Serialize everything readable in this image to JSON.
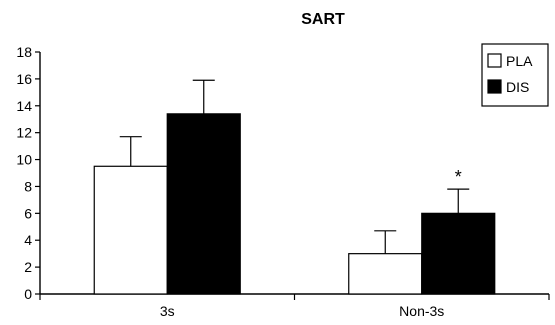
{
  "chart_data": {
    "type": "bar",
    "title": "SART",
    "xlabel": "",
    "ylabel": "",
    "ylim": [
      0,
      18
    ],
    "yticks": [
      0,
      2,
      4,
      6,
      8,
      10,
      12,
      14,
      16,
      18
    ],
    "categories": [
      "3s",
      "Non-3s"
    ],
    "series": [
      {
        "name": "PLA",
        "values": [
          9.5,
          3.0
        ],
        "errors": [
          2.2,
          1.7
        ],
        "fill": "#ffffff"
      },
      {
        "name": "DIS",
        "values": [
          13.4,
          6.0
        ],
        "errors": [
          2.5,
          1.8
        ],
        "fill": "#000000"
      }
    ],
    "annotations": [
      {
        "category": "Non-3s",
        "series": "DIS",
        "text": "*"
      }
    ],
    "legend": {
      "placement": "top-right"
    },
    "grid": false
  }
}
